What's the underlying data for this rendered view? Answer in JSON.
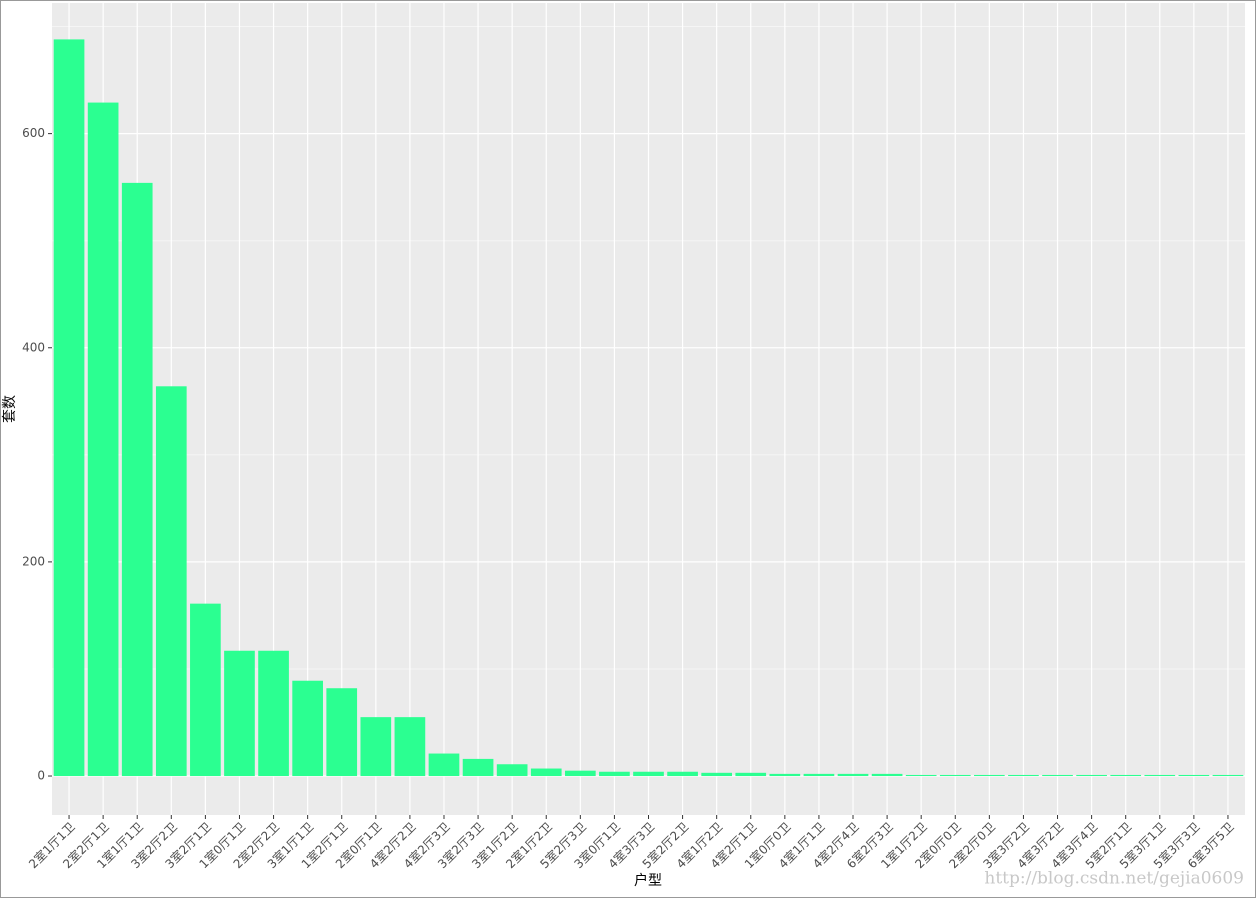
{
  "chart_data": {
    "type": "bar",
    "x_label": "户型",
    "y_label": "套数",
    "watermark": "http://blog.csdn.net/gejia0609",
    "categories": [
      "2室1厅1卫",
      "2室2厅1卫",
      "1室1厅1卫",
      "3室2厅2卫",
      "3室2厅1卫",
      "1室0厅1卫",
      "2室2厅2卫",
      "3室1厅1卫",
      "1室2厅1卫",
      "2室0厅1卫",
      "4室2厅2卫",
      "4室2厅3卫",
      "3室2厅3卫",
      "3室1厅2卫",
      "2室1厅2卫",
      "5室2厅3卫",
      "3室0厅1卫",
      "4室3厅3卫",
      "5室2厅2卫",
      "4室1厅2卫",
      "4室2厅1卫",
      "1室0厅0卫",
      "4室1厅1卫",
      "4室2厅4卫",
      "6室2厅3卫",
      "1室1厅2卫",
      "2室0厅0卫",
      "2室2厅0卫",
      "3室3厅2卫",
      "4室3厅2卫",
      "4室3厅4卫",
      "5室2厅1卫",
      "5室3厅1卫",
      "5室3厅3卫",
      "6室3厅5卫"
    ],
    "values": [
      688,
      629,
      554,
      364,
      161,
      117,
      117,
      89,
      82,
      55,
      55,
      21,
      16,
      11,
      7,
      5,
      4,
      4,
      4,
      3,
      3,
      2,
      2,
      2,
      2,
      1,
      1,
      1,
      1,
      1,
      1,
      1,
      1,
      1,
      1
    ],
    "color": "#2bff91",
    "ylim": [
      -36.4,
      722
    ],
    "yticks": [
      0,
      200,
      400,
      600
    ],
    "grid": true
  }
}
